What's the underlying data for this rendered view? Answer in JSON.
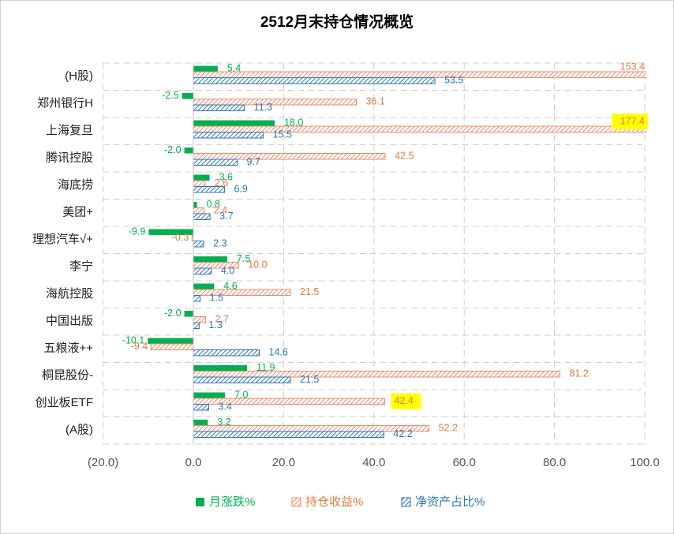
{
  "chart_data": {
    "type": "hbar",
    "title": "2512月末持仓情况概览",
    "categories": [
      "(H股)",
      "郑州银行H",
      "上海复旦",
      "腾讯控股",
      "海底捞",
      "美团+",
      "理想汽车√+",
      "李宁",
      "海航控股",
      "中国出版",
      "五粮液++",
      "桐昆股份-",
      "创业板ETF",
      "(A股)"
    ],
    "series": [
      {
        "name": "月涨跌%",
        "color": "#00b050",
        "fill": "solid",
        "values": [
          5.4,
          -2.5,
          18.0,
          -2.0,
          3.6,
          0.8,
          -9.9,
          7.5,
          4.6,
          -2.0,
          -10.1,
          11.9,
          7.0,
          3.2
        ],
        "value_labels": [
          "5.4",
          "-2.5",
          "18.0",
          "-2.0",
          "3.6",
          "0.8",
          "-9.9",
          "7.5",
          "4.6",
          "-2.0",
          "-10.1",
          "11.9",
          "7.0",
          "3.2"
        ]
      },
      {
        "name": "持仓收益%",
        "color": "#f08a6c",
        "label_color": "#e07b39",
        "fill": "hatch",
        "values": [
          153.4,
          36.1,
          177.4,
          42.5,
          2.6,
          2.4,
          -0.3,
          10.0,
          21.5,
          2.7,
          -9.4,
          81.2,
          42.4,
          52.2
        ],
        "value_labels": [
          "153.4",
          "36.1",
          "177.4",
          "42.5",
          "2.6",
          "2.4",
          "-0.3",
          "10.0",
          "21.5",
          "2.7",
          "-9.4",
          "81.2",
          "42.4",
          "52.2"
        ],
        "highlighted": [
          2,
          12
        ]
      },
      {
        "name": "净资产占比%",
        "color": "#2e75b6",
        "fill": "hatch",
        "values": [
          53.5,
          11.3,
          15.5,
          9.7,
          6.9,
          3.7,
          2.3,
          4.0,
          1.5,
          1.3,
          14.6,
          21.5,
          3.4,
          42.2
        ],
        "value_labels": [
          "53.5",
          "11.3",
          "15.5",
          "9.7",
          "6.9",
          "3.7",
          "2.3",
          "4.0",
          "1.5",
          "1.3",
          "14.6",
          "21.5",
          "3.4",
          "42.2"
        ]
      }
    ],
    "xlim": [
      -20,
      100
    ],
    "xticks": [
      {
        "value": -20,
        "label": "(20.0)"
      },
      {
        "value": 0,
        "label": "0.0"
      },
      {
        "value": 20,
        "label": "20.0"
      },
      {
        "value": 40,
        "label": "40.0"
      },
      {
        "value": 60,
        "label": "60.0"
      },
      {
        "value": 80,
        "label": "80.0"
      },
      {
        "value": 100,
        "label": "100.0"
      }
    ],
    "negative_tick_color": "#c00000",
    "highlight_color": "#ffff00",
    "grid": true,
    "legend": "bottom"
  }
}
